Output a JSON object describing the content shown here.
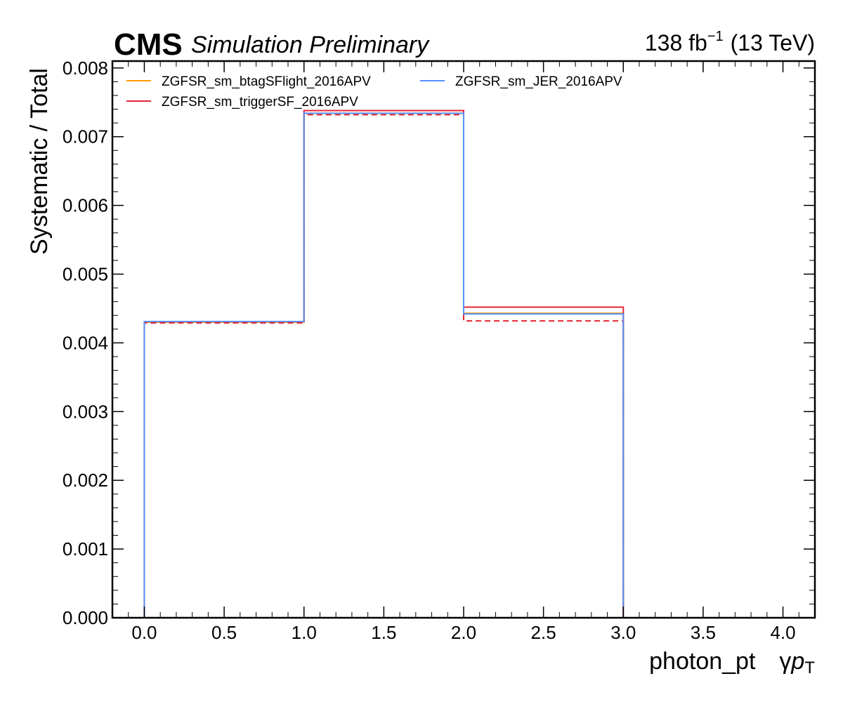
{
  "header": {
    "experiment": "CMS",
    "status": "Simulation Preliminary",
    "lumi_value": "138 fb",
    "lumi_exponent": "−1",
    "energy": "(13 TeV)"
  },
  "chart_data": {
    "type": "line",
    "style": "step-histogram",
    "xlabel_main": "photon_pt",
    "xlabel_symbol": "γ",
    "xlabel_var": "p",
    "xlabel_sub": "T",
    "ylabel": "Systematic / Total",
    "xlim": [
      -0.2,
      4.2
    ],
    "ylim": [
      0,
      0.0081
    ],
    "x_ticks": [
      "0.0",
      "0.5",
      "1.0",
      "1.5",
      "2.0",
      "2.5",
      "3.0",
      "3.5",
      "4.0"
    ],
    "y_ticks": [
      "0.000",
      "0.001",
      "0.002",
      "0.003",
      "0.004",
      "0.005",
      "0.006",
      "0.007",
      "0.008"
    ],
    "bin_edges": [
      0,
      1,
      2,
      3
    ],
    "grid": false,
    "legend_position": "top-left, two columns",
    "series": [
      {
        "name": "ZGFSR_sm_btagSFlight_2016APV",
        "color": "#ff9900",
        "dash": "solid",
        "values": [
          0.0043,
          0.00734,
          0.00443
        ]
      },
      {
        "name": "ZGFSR_sm_triggerSF_2016APV",
        "color": "#e42536",
        "dash": "solid",
        "values": [
          0.00431,
          0.00738,
          0.00452
        ]
      },
      {
        "name": "",
        "color": "#e42536",
        "dash": "dashed",
        "values": [
          0.00429,
          0.00732,
          0.00432
        ]
      },
      {
        "name": "ZGFSR_sm_JER_2016APV",
        "color": "#5790fc",
        "dash": "solid",
        "values": [
          0.00431,
          0.00734,
          0.00442
        ]
      }
    ]
  }
}
